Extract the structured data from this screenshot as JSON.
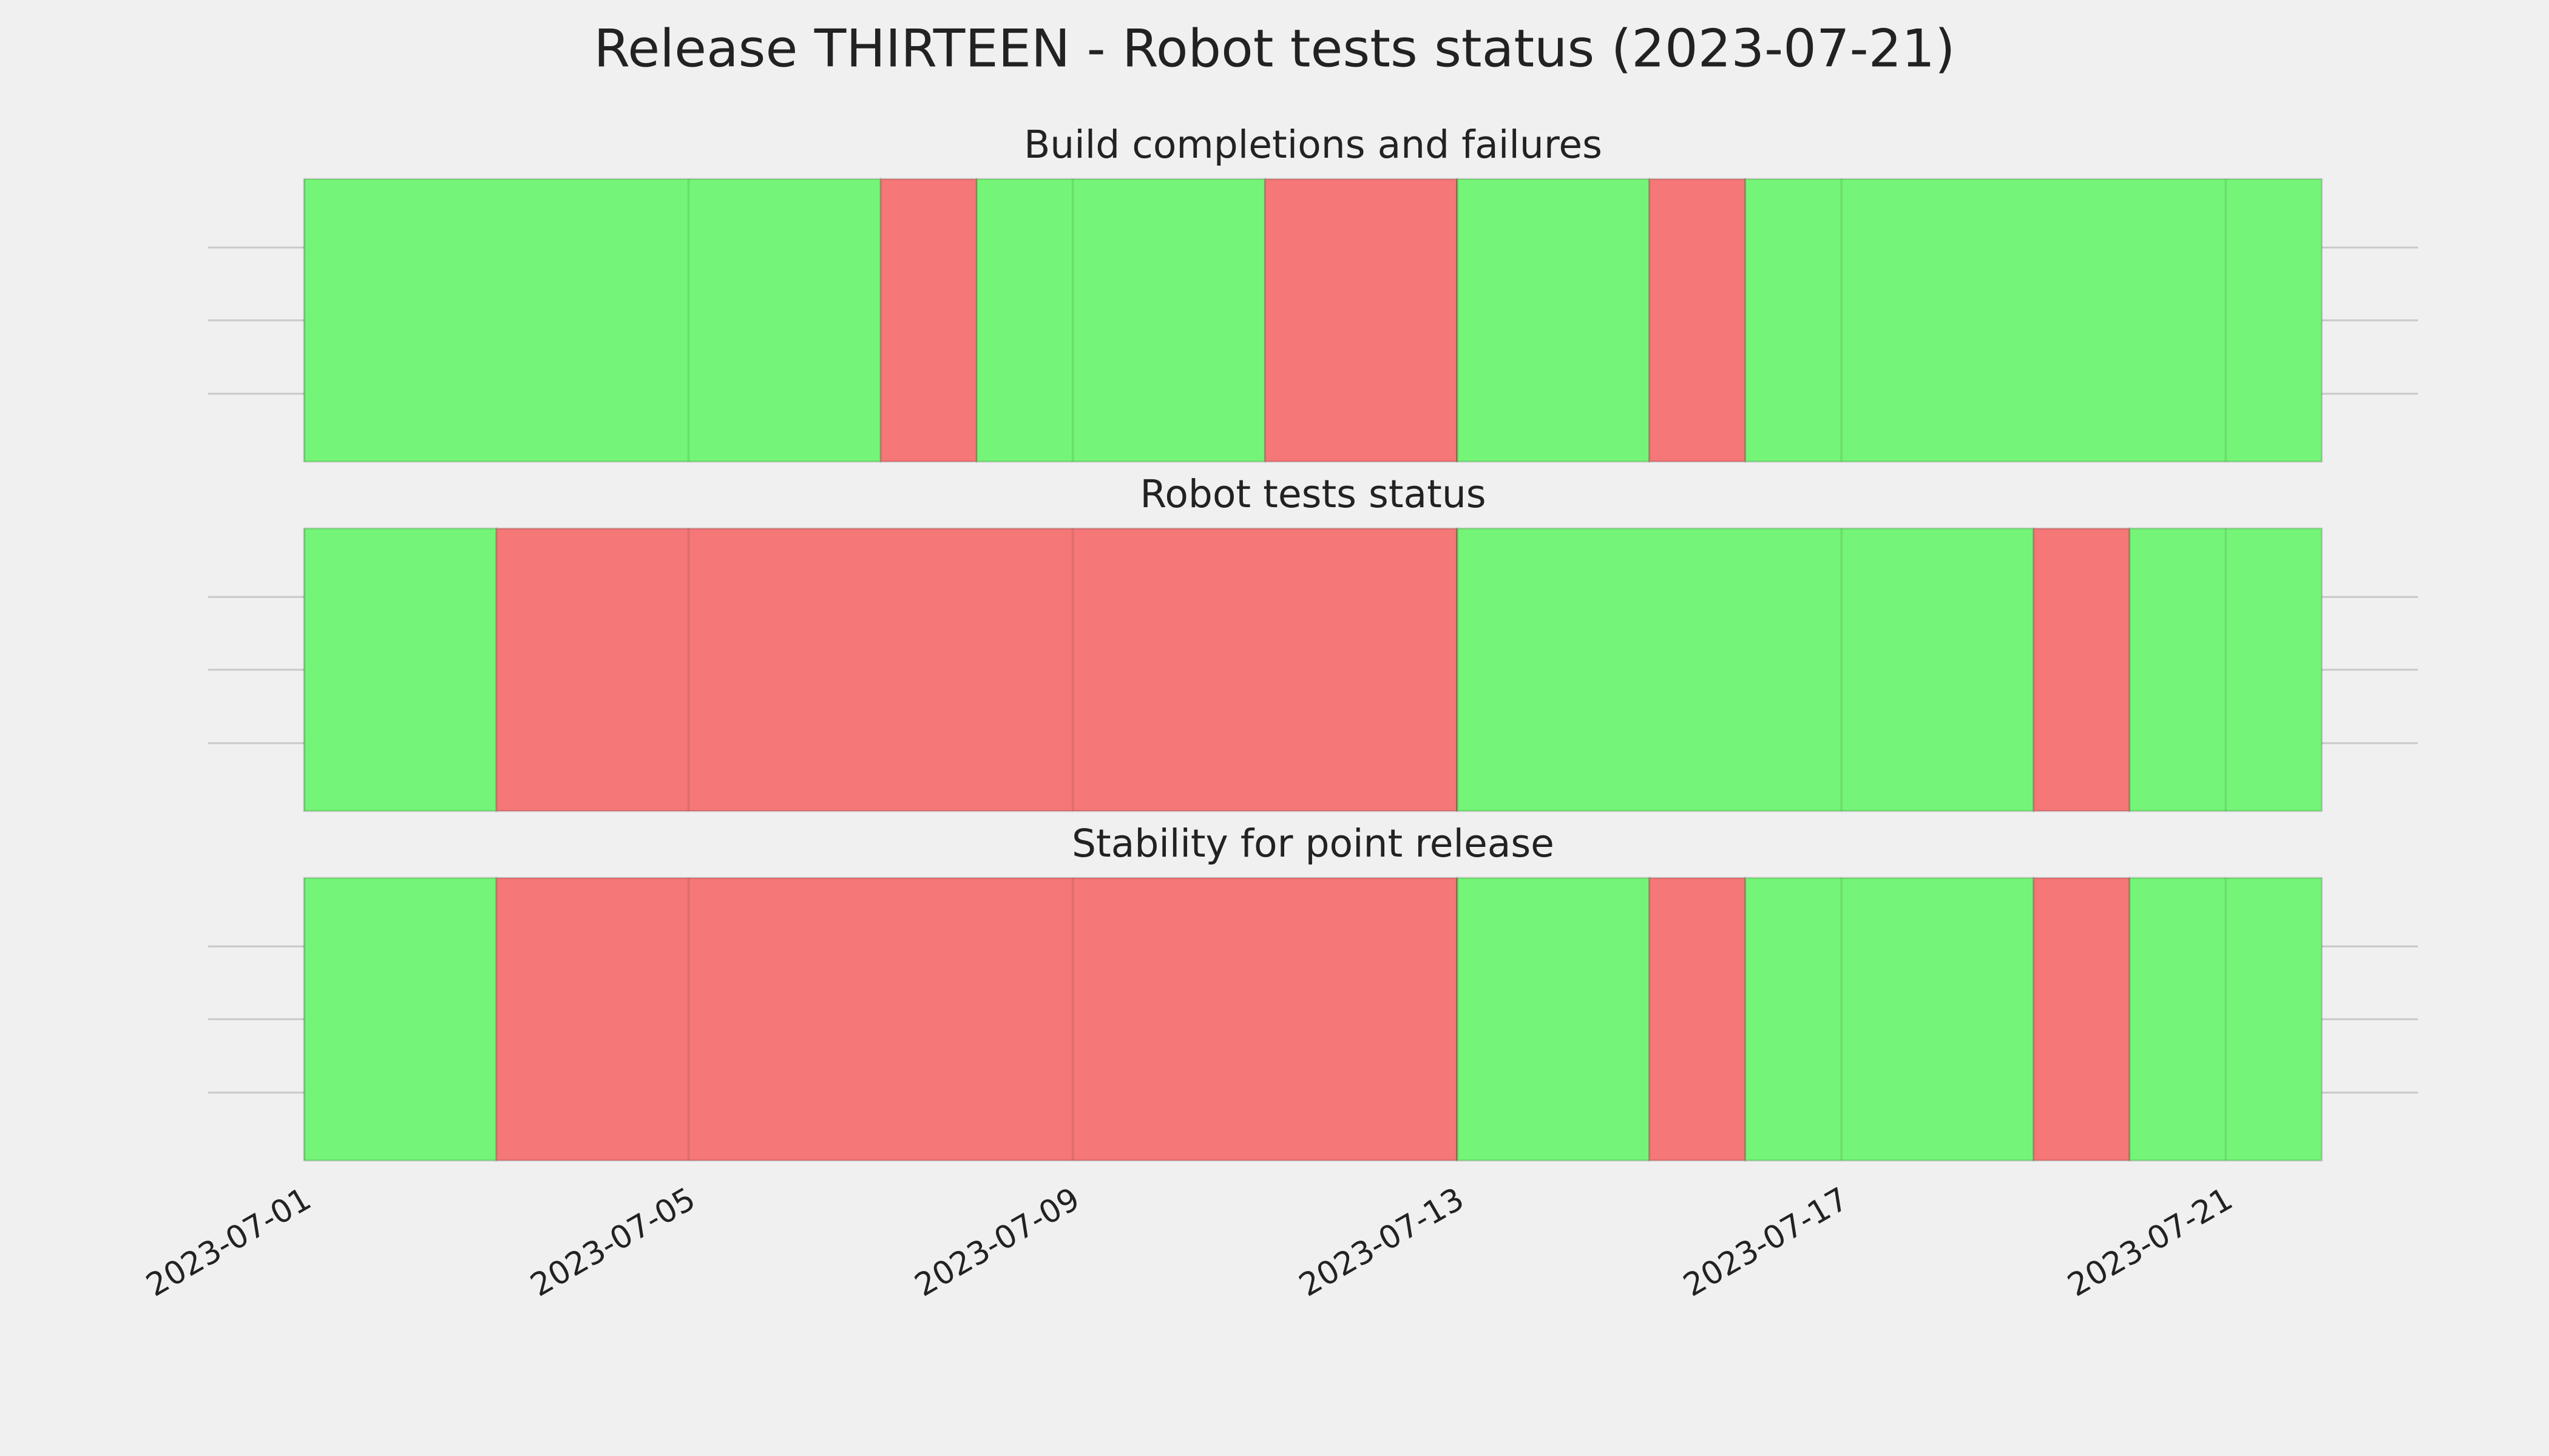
{
  "chart_data": [
    {
      "type": "timeline",
      "title": "Release THIRTEEN - Robot tests status (2023-07-21)",
      "subtitle": "Build completions and failures",
      "xlim": [
        "2023-06-30",
        "2023-07-23"
      ],
      "xticks": [
        "2023-07-01",
        "2023-07-05",
        "2023-07-09",
        "2023-07-13",
        "2023-07-17",
        "2023-07-21"
      ],
      "grid": true,
      "segments": [
        {
          "start": "2023-07-01",
          "end": "2023-07-07",
          "color": "#75f577"
        },
        {
          "start": "2023-07-07",
          "end": "2023-07-08",
          "color": "#f57777"
        },
        {
          "start": "2023-07-08",
          "end": "2023-07-11",
          "color": "#75f577"
        },
        {
          "start": "2023-07-11",
          "end": "2023-07-13",
          "color": "#f57777"
        },
        {
          "start": "2023-07-13",
          "end": "2023-07-15",
          "color": "#75f577"
        },
        {
          "start": "2023-07-15",
          "end": "2023-07-16",
          "color": "#f57777"
        },
        {
          "start": "2023-07-16",
          "end": "2023-07-22",
          "color": "#75f577"
        }
      ]
    },
    {
      "type": "timeline",
      "subtitle": "Robot tests status",
      "xlim": [
        "2023-06-30",
        "2023-07-23"
      ],
      "grid": true,
      "segments": [
        {
          "start": "2023-07-01",
          "end": "2023-07-03",
          "color": "#75f577"
        },
        {
          "start": "2023-07-03",
          "end": "2023-07-13",
          "color": "#f57777"
        },
        {
          "start": "2023-07-13",
          "end": "2023-07-19",
          "color": "#75f577"
        },
        {
          "start": "2023-07-19",
          "end": "2023-07-20",
          "color": "#f57777"
        },
        {
          "start": "2023-07-20",
          "end": "2023-07-22",
          "color": "#75f577"
        }
      ]
    },
    {
      "type": "timeline",
      "subtitle": "Stability for point release",
      "xlim": [
        "2023-06-30",
        "2023-07-23"
      ],
      "grid": true,
      "segments": [
        {
          "start": "2023-07-01",
          "end": "2023-07-03",
          "color": "#75f577"
        },
        {
          "start": "2023-07-03",
          "end": "2023-07-13",
          "color": "#f57777"
        },
        {
          "start": "2023-07-13",
          "end": "2023-07-15",
          "color": "#75f577"
        },
        {
          "start": "2023-07-15",
          "end": "2023-07-16",
          "color": "#f57777"
        },
        {
          "start": "2023-07-16",
          "end": "2023-07-19",
          "color": "#75f577"
        },
        {
          "start": "2023-07-19",
          "end": "2023-07-20",
          "color": "#f57777"
        },
        {
          "start": "2023-07-20",
          "end": "2023-07-22",
          "color": "#75f577"
        }
      ]
    }
  ]
}
